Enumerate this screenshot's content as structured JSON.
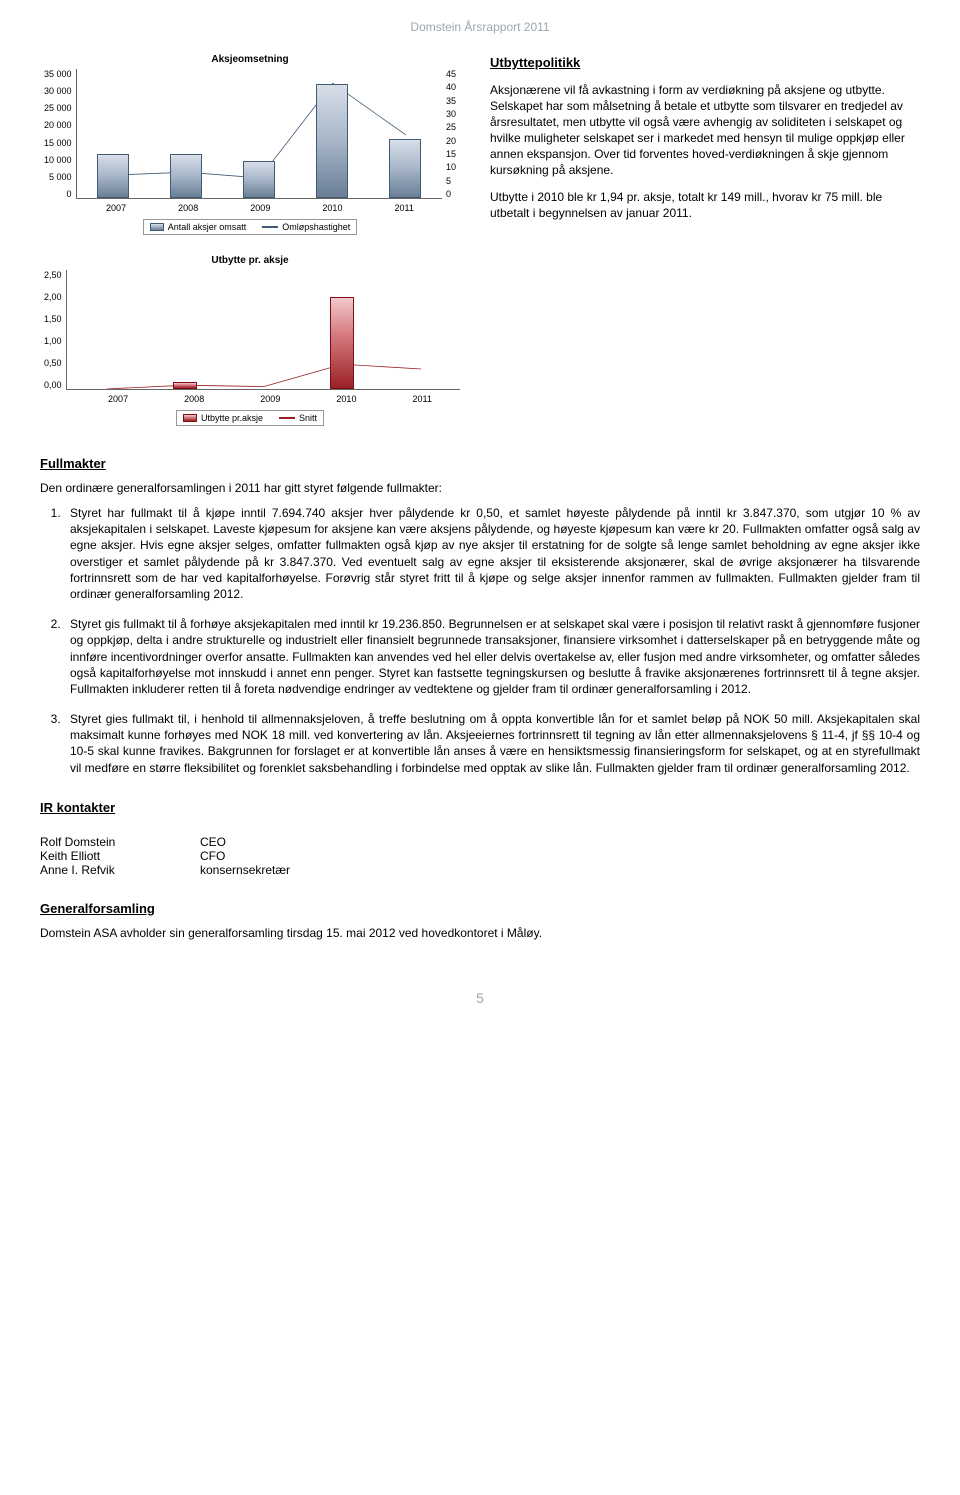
{
  "header": {
    "title": "Domstein Årsrapport 2011"
  },
  "chart1": {
    "type": "bar+line",
    "title": "Aksjeomsetning",
    "categories": [
      "2007",
      "2008",
      "2009",
      "2010",
      "2011"
    ],
    "bars": [
      12000,
      12000,
      10000,
      31000,
      16000
    ],
    "bar_colors": "#6a7f96",
    "line": [
      8,
      9,
      7,
      40,
      22
    ],
    "line_color": "#405a74",
    "y_left": {
      "min": 0,
      "max": 35000,
      "step": 5000,
      "labels": [
        "35 000",
        "30 000",
        "25 000",
        "20 000",
        "15 000",
        "10 000",
        "5 000",
        "0"
      ]
    },
    "y_right": {
      "min": 0,
      "max": 45,
      "step": 5,
      "labels": [
        "45",
        "40",
        "35",
        "30",
        "25",
        "20",
        "15",
        "10",
        "5",
        "0"
      ]
    },
    "legend": [
      {
        "style": "bar",
        "label": "Antall aksjer omsatt"
      },
      {
        "style": "line",
        "label": "Omløpshastighet"
      }
    ]
  },
  "chart2": {
    "type": "bar+line",
    "title": "Utbytte pr. aksje",
    "categories": [
      "2007",
      "2008",
      "2009",
      "2010",
      "2011"
    ],
    "bars": [
      0.0,
      0.15,
      0.0,
      1.94,
      0.0
    ],
    "bar_color": "#9a2026",
    "snitt_line": [
      0.0,
      0.08,
      0.05,
      0.52,
      0.42
    ],
    "line_color": "#9a2026",
    "y_left": {
      "min": 0,
      "max": 2.5,
      "step": 0.5,
      "labels": [
        "2,50",
        "2,00",
        "1,50",
        "1,00",
        "0,50",
        "0,00"
      ]
    },
    "legend": [
      {
        "style": "bar-red",
        "label": "Utbytte pr.aksje"
      },
      {
        "style": "line-red",
        "label": "Snitt"
      }
    ]
  },
  "policy": {
    "heading": "Utbyttepolitikk",
    "p1": "Aksjonærene vil få avkastning i form av verdiøkning på aksjene og utbytte. Selskapet har som målsetning å betale et utbytte som tilsvarer en tredjedel av årsresultatet, men utbytte vil også være avhengig av soliditeten i selskapet og hvilke muligheter selskapet ser i markedet med hensyn til mulige oppkjøp eller annen ekspansjon. Over tid forventes hoved-verdiøkningen å skje gjennom kursøkning på aksjene.",
    "p2": "Utbytte i 2010 ble kr 1,94 pr. aksje, totalt kr 149 mill., hvorav kr 75 mill. ble utbetalt i begynnelsen av januar 2011."
  },
  "fullmakter": {
    "heading": "Fullmakter",
    "intro": "Den ordinære generalforsamlingen i 2011 har gitt styret følgende fullmakter:",
    "items": [
      "Styret har fullmakt til å kjøpe inntil 7.694.740 aksjer hver pålydende kr 0,50, et samlet høyeste pålydende på inntil kr 3.847.370, som utgjør 10 % av aksjekapitalen i selskapet. Laveste kjøpesum for aksjene kan være aksjens pålydende, og høyeste kjøpesum kan være kr 20. Fullmakten omfatter også salg av egne aksjer. Hvis egne aksjer selges, omfatter fullmakten også kjøp av nye aksjer til erstatning for de solgte så lenge samlet beholdning av egne aksjer ikke overstiger et samlet pålydende på kr 3.847.370. Ved eventuelt salg av egne aksjer til eksisterende aksjonærer, skal de øvrige aksjonærer ha tilsvarende fortrinnsrett som de har ved kapitalforhøyelse. Forøvrig står styret fritt til å kjøpe og selge aksjer innenfor rammen av fullmakten. Fullmakten gjelder fram til ordinær generalforsamling 2012.",
      "Styret gis fullmakt til å forhøye aksjekapitalen med inntil kr 19.236.850. Begrunnelsen er at selskapet skal være i posisjon til relativt raskt å gjennomføre fusjoner og oppkjøp, delta i andre strukturelle og industrielt eller finansielt begrunnede transaksjoner, finansiere virksomhet i datterselskaper på en betryggende måte og innføre incentivordninger overfor ansatte. Fullmakten kan anvendes ved hel eller delvis overtakelse av, eller fusjon med andre virksomheter, og omfatter således også kapitalforhøyelse mot innskudd i annet enn penger. Styret kan fastsette tegningskursen og beslutte å fravike aksjonærenes fortrinnsrett til å tegne aksjer. Fullmakten inkluderer retten til å foreta nødvendige endringer av vedtektene og gjelder fram til ordinær generalforsamling i 2012.",
      "Styret gies fullmakt til, i henhold til allmennaksjeloven, å treffe beslutning om å oppta konvertible lån for et samlet beløp på NOK 50 mill. Aksjekapitalen skal maksimalt kunne forhøyes med NOK 18 mill. ved konvertering av lån. Aksjeeiernes fortrinnsrett til tegning av lån etter allmennaksjelovens § 11-4, jf §§ 10-4 og 10-5 skal kunne fravikes. Bakgrunnen for forslaget er at konvertible lån anses å være en hensiktsmessig finansieringsform for selskapet, og at en styrefullmakt vil medføre en større fleksibilitet og forenklet saksbehandling i forbindelse med opptak av slike lån. Fullmakten gjelder fram til ordinær generalforsamling 2012."
    ]
  },
  "ir": {
    "heading": "IR kontakter",
    "rows": [
      {
        "name": "Rolf Domstein",
        "role": "CEO"
      },
      {
        "name": "Keith Elliott",
        "role": "CFO"
      },
      {
        "name": "Anne I. Refvik",
        "role": "konsernsekretær"
      }
    ]
  },
  "gf": {
    "heading": "Generalforsamling",
    "text": "Domstein ASA avholder sin generalforsamling tirsdag 15. mai 2012 ved hovedkontoret i Måløy."
  },
  "page_number": "5"
}
